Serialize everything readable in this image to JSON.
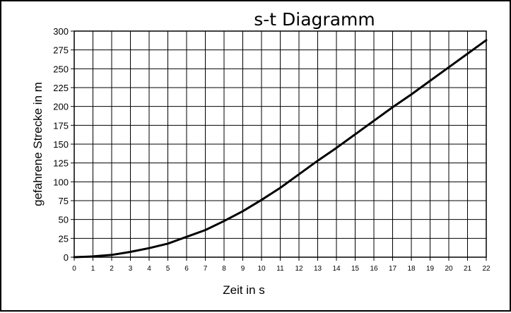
{
  "chart_data": {
    "type": "line",
    "title": "s-t Diagramm",
    "xlabel": "Zeit in s",
    "ylabel": "gefahrene Strecke in m",
    "xlim": [
      0,
      22
    ],
    "ylim": [
      0,
      300
    ],
    "x_ticks": [
      0,
      1,
      2,
      3,
      4,
      5,
      6,
      7,
      8,
      9,
      10,
      11,
      12,
      13,
      14,
      15,
      16,
      17,
      18,
      19,
      20,
      21,
      22
    ],
    "y_ticks": [
      0,
      25,
      50,
      75,
      100,
      125,
      150,
      175,
      200,
      225,
      250,
      275,
      300
    ],
    "grid": true,
    "legend": "none",
    "line_color": "#000000",
    "series": [
      {
        "x": [
          0,
          1,
          2,
          3,
          4,
          5,
          6,
          7,
          8,
          9,
          10,
          11,
          12,
          13,
          14,
          15,
          16,
          17,
          18,
          19,
          20,
          21,
          22
        ],
        "values": [
          0,
          1,
          3,
          7,
          12,
          18,
          27,
          36,
          48,
          61,
          76,
          92,
          110,
          128,
          145,
          163,
          181,
          199,
          216,
          234,
          252,
          270,
          288
        ]
      }
    ]
  }
}
